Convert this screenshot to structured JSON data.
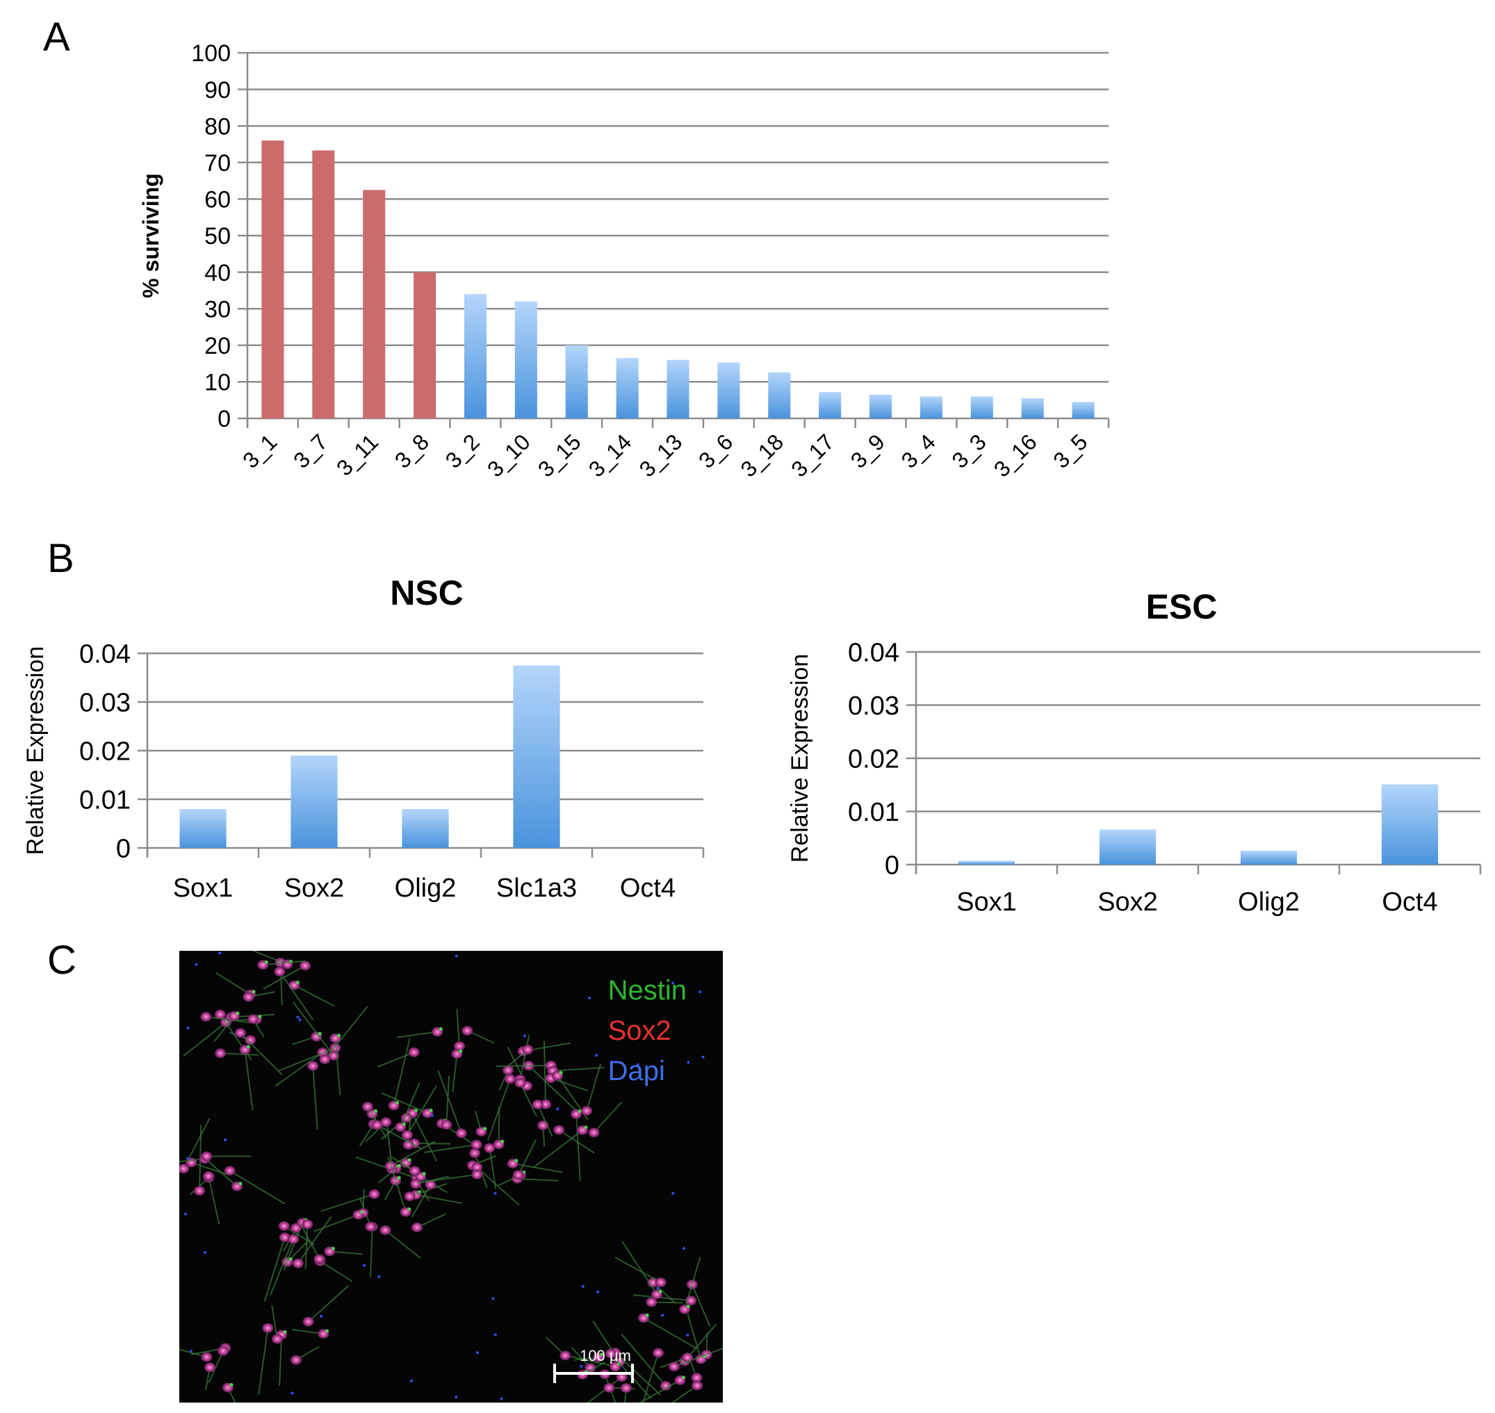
{
  "panels": {
    "a": "A",
    "b": "B",
    "c": "C"
  },
  "colors": {
    "top_group_bar": "#cc6b6b",
    "bar_gradient_top": "#b3d5fb",
    "bar_gradient_bottom": "#4a93dc",
    "gridline": "#8c8c8c",
    "nestin": "#2fb52f",
    "sox2": "#e8322f",
    "dapi": "#3f6fe8"
  },
  "chart_data": [
    {
      "type": "bar",
      "title": "",
      "xlabel": "",
      "ylabel": "% surviving",
      "ylim": [
        0,
        100
      ],
      "yticks": [
        "0",
        "10",
        "20",
        "30",
        "40",
        "50",
        "60",
        "70",
        "80",
        "90",
        "100"
      ],
      "categories": [
        "3_1",
        "3_7",
        "3_11",
        "3_8",
        "3_2",
        "3_10",
        "3_15",
        "3_14",
        "3_13",
        "3_6",
        "3_18",
        "3_17",
        "3_9",
        "3_4",
        "3_3",
        "3_16",
        "3_5"
      ],
      "values": [
        76,
        73.3,
        62.5,
        40,
        34,
        32,
        20,
        16.5,
        16,
        15.3,
        12.6,
        7.2,
        6.5,
        6,
        6,
        5.5,
        4.5
      ],
      "highlighted_count": 4,
      "grid": true
    },
    {
      "type": "bar",
      "title": "NSC",
      "xlabel": "",
      "ylabel": "Relative Expression",
      "ylim": [
        0,
        0.04
      ],
      "yticks": [
        "0",
        "0.01",
        "0.02",
        "0.03",
        "0.04"
      ],
      "categories": [
        "Sox1",
        "Sox2",
        "Olig2",
        "Slc1a3",
        "Oct4"
      ],
      "values": [
        0.008,
        0.019,
        0.008,
        0.0375,
        0
      ],
      "grid": true
    },
    {
      "type": "bar",
      "title": "ESC",
      "xlabel": "",
      "ylabel": "Relative Expression",
      "ylim": [
        0,
        0.04
      ],
      "yticks": [
        "0",
        "0.01",
        "0.02",
        "0.03",
        "0.04"
      ],
      "categories": [
        "Sox1",
        "Sox2",
        "Olig2",
        "Oct4"
      ],
      "values": [
        0.0007,
        0.0066,
        0.0026,
        0.0151
      ],
      "grid": true
    }
  ],
  "micrograph": {
    "legend": [
      "Nestin",
      "Sox2",
      "Dapi"
    ],
    "scale_bar_label": "100 μm"
  }
}
